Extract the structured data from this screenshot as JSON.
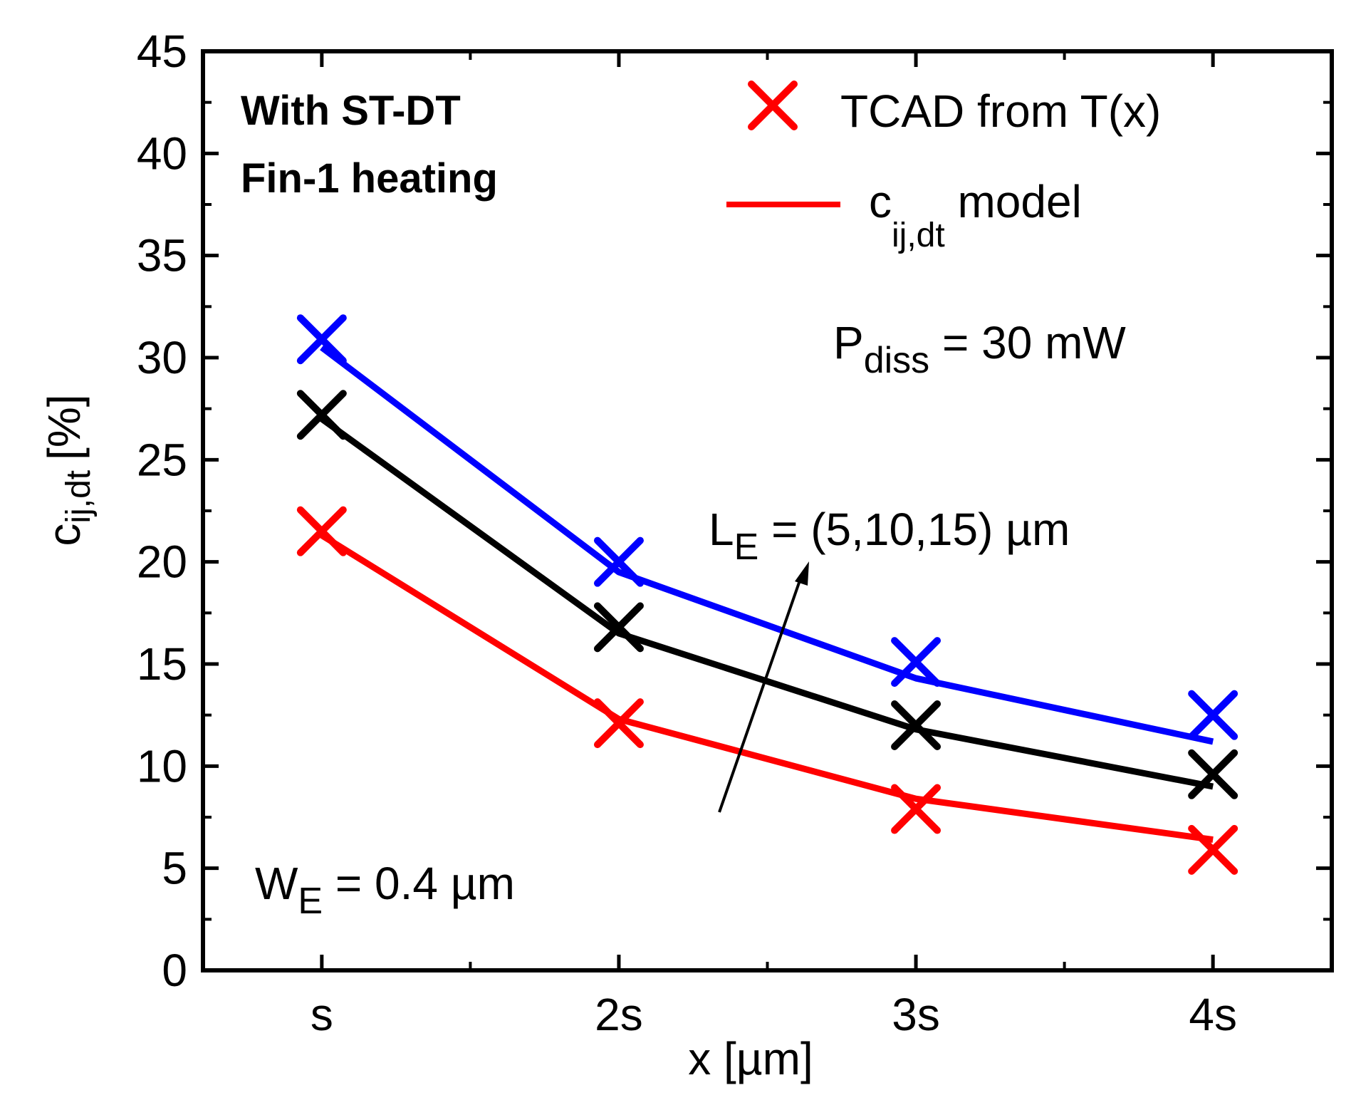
{
  "chart_data": {
    "type": "line",
    "title": "",
    "xlabel": "x [µm]",
    "ylabel_main": "c",
    "ylabel_sub": "ij,dt",
    "ylabel_unit": "[%]",
    "categories": [
      "s",
      "2s",
      "3s",
      "4s"
    ],
    "x": [
      1,
      2,
      3,
      4
    ],
    "xlim": [
      0.6,
      4.4
    ],
    "ylim": [
      0,
      45
    ],
    "yticks": [
      0,
      5,
      10,
      15,
      20,
      25,
      30,
      35,
      40,
      45
    ],
    "grid": false,
    "series": [
      {
        "name": "L_E = 15 µm",
        "color": "#0000ff",
        "model": [
          30.5,
          19.5,
          14.3,
          11.2
        ],
        "tcad": [
          30.9,
          20.0,
          15.1,
          12.5
        ]
      },
      {
        "name": "L_E = 10 µm",
        "color": "#000000",
        "model": [
          27.0,
          16.5,
          11.8,
          9.0
        ],
        "tcad": [
          27.2,
          16.8,
          12.0,
          9.6
        ]
      },
      {
        "name": "L_E = 5 µm",
        "color": "#ff0000",
        "model": [
          21.3,
          12.3,
          8.4,
          6.4
        ],
        "tcad": [
          21.5,
          12.1,
          7.9,
          5.9
        ]
      }
    ],
    "legend": {
      "position": "top-right",
      "tcad_label": "TCAD from T(x)",
      "model_label_main": "c",
      "model_label_sub": "ij,dt",
      "model_label_rest": " model",
      "color": "#ff0000"
    },
    "annotations": {
      "condition_line1": "With ST-DT",
      "condition_line2": "Fin-1 heating",
      "pdiss_main": "P",
      "pdiss_sub": "diss",
      "pdiss_rest": " = 30 mW",
      "le_main": "L",
      "le_sub": "E",
      "le_rest": " = (5,10,15) µm",
      "we_main": "W",
      "we_sub": "E",
      "we_rest": " = 0.4 µm"
    }
  }
}
